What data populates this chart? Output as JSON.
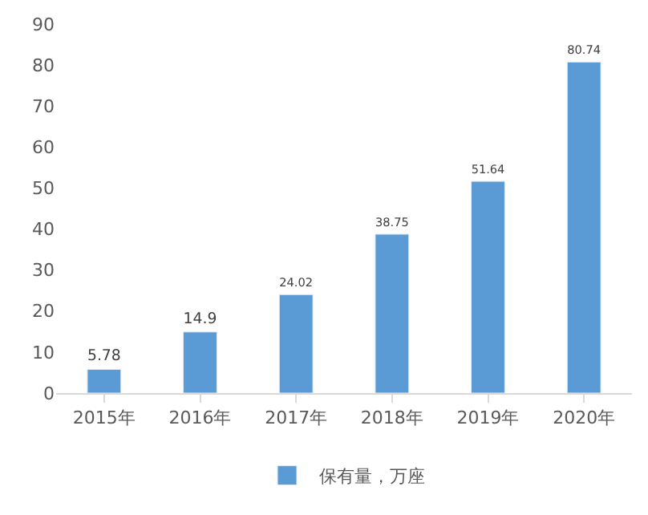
{
  "chart_data": {
    "type": "bar",
    "categories": [
      "2015年",
      "2016年",
      "2017年",
      "2018年",
      "2019年",
      "2020年"
    ],
    "series": [
      {
        "name": "保有量，万座",
        "color": "#5b9bd5",
        "values": [
          5.78,
          14.9,
          24.02,
          38.75,
          51.64,
          80.74
        ]
      }
    ],
    "ylim": [
      0,
      90
    ],
    "yticks": [
      0,
      10,
      20,
      30,
      40,
      50,
      60,
      70,
      80,
      90
    ],
    "data_labels": true,
    "legend": "bottom",
    "grid": false
  }
}
